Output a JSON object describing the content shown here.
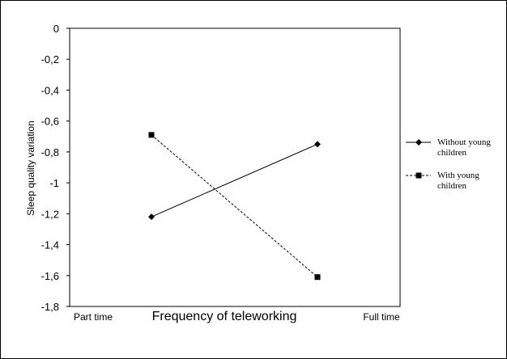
{
  "chart_data": {
    "type": "line",
    "title": "",
    "xlabel": "Frequency of teleworking",
    "ylabel": "Sleep quality variation",
    "x_endpoint_labels": [
      "Part time",
      "Full time"
    ],
    "ylim": [
      -1.8,
      0
    ],
    "yticks": [
      "0",
      "-0,2",
      "-0,4",
      "-0,6",
      "-0,8",
      "-1",
      "-1,2",
      "-1,4",
      "-1,6",
      "-1,8"
    ],
    "grid": false,
    "legend_position": "right",
    "series": [
      {
        "name_lines": [
          "Without young",
          "children"
        ],
        "marker": "diamond",
        "line_style": "solid",
        "values": [
          -1.22,
          -0.75
        ]
      },
      {
        "name_lines": [
          "With young",
          "children"
        ],
        "marker": "square",
        "line_style": "dashed",
        "values": [
          -0.69,
          -1.61
        ]
      }
    ]
  }
}
